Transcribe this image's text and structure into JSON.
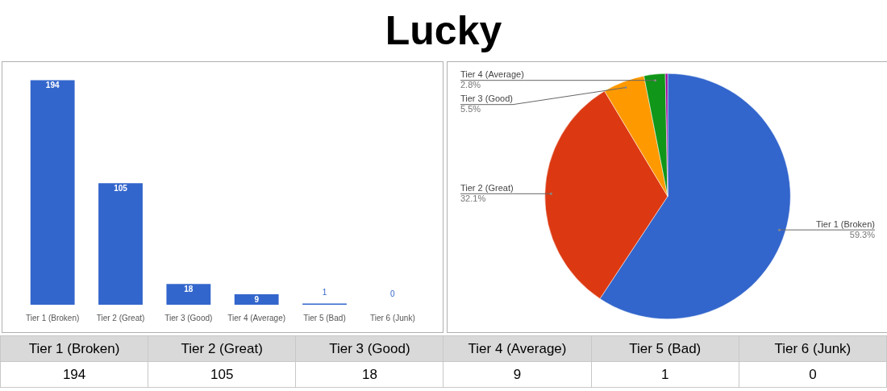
{
  "chart_data": [
    {
      "type": "bar",
      "title": "Lucky",
      "categories": [
        "Tier 1 (Broken)",
        "Tier 2 (Great)",
        "Tier 3 (Good)",
        "Tier 4 (Average)",
        "Tier 5 (Bad)",
        "Tier 6 (Junk)"
      ],
      "values": [
        194,
        105,
        18,
        9,
        1,
        0
      ],
      "color": "#3366cc",
      "data_labels": true,
      "tick_labels": "x"
    },
    {
      "type": "pie",
      "categories": [
        "Tier 1 (Broken)",
        "Tier 2 (Great)",
        "Tier 3 (Good)",
        "Tier 4 (Average)",
        null,
        null
      ],
      "values": [
        59.3,
        32.1,
        5.5,
        2.8,
        0.3,
        0
      ],
      "colors": [
        "#3366cc",
        "#dc3912",
        "#ff9900",
        "#109618",
        "#990099",
        "#0099c6"
      ],
      "value_labels": [
        "59.3%",
        "32.1%",
        "5.5%",
        "2.8%",
        null,
        null
      ]
    },
    {
      "type": "other",
      "categories": [
        "Tier 1 (Broken)",
        "Tier 2 (Great)",
        "Tier 3 (Good)",
        "Tier 4 (Average)",
        "Tier 5 (Bad)",
        "Tier 6 (Junk)"
      ],
      "values": [
        194,
        105,
        18,
        9,
        1,
        0
      ],
      "data_labels": true
    }
  ]
}
